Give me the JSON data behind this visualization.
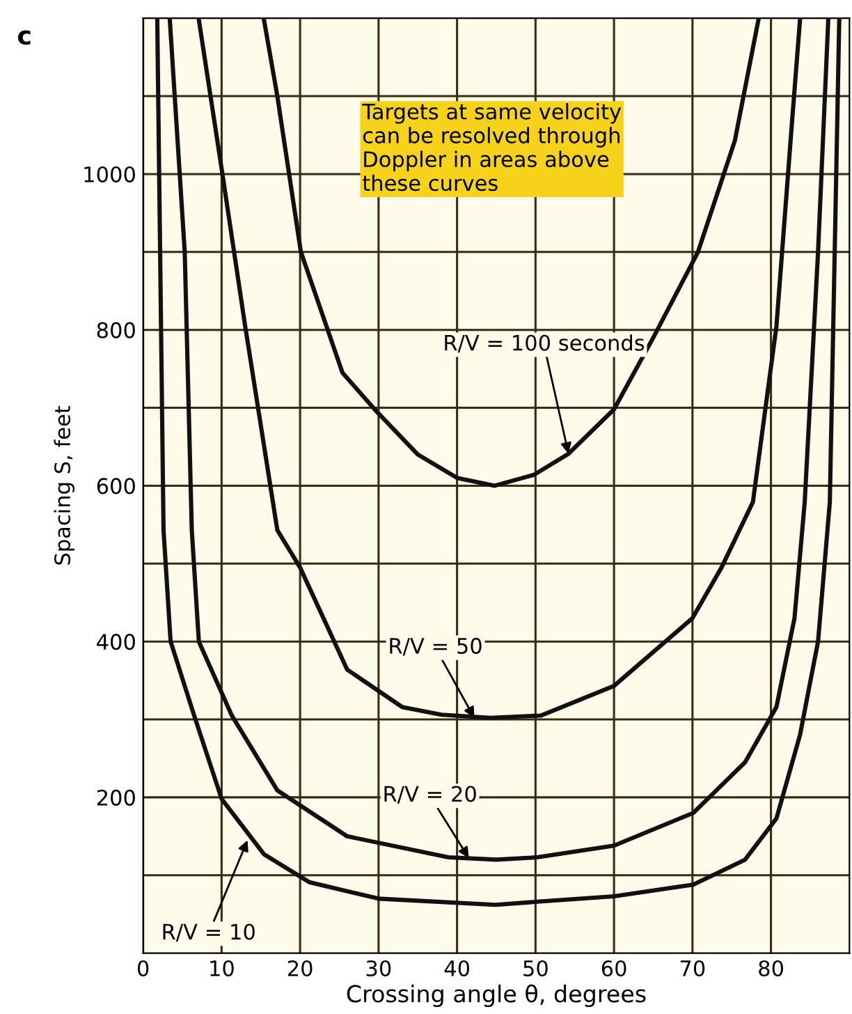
{
  "chart_data": {
    "type": "line",
    "xlabel": "Crossing angle θ, degrees",
    "ylabel": "Spacing S, feet",
    "xlim": [
      0,
      90
    ],
    "xticks": [
      0,
      10,
      20,
      30,
      40,
      50,
      60,
      70,
      80
    ],
    "ylim": [
      0,
      1200
    ],
    "yticks": [
      {
        "value": 100,
        "label": null
      },
      200,
      {
        "value": 300,
        "label": null
      },
      400,
      {
        "value": 500,
        "label": null
      },
      600,
      {
        "value": 700,
        "label": null
      },
      800,
      {
        "value": 900,
        "label": null
      },
      1000,
      {
        "value": 1100,
        "label": null
      }
    ],
    "grid": true,
    "marker": "none",
    "line_style": "solid",
    "series": [
      {
        "color": "#111111",
        "x": [
          15.4,
          17.1,
          20.1,
          25.4,
          29.5,
          35,
          40,
          44.8,
          49.8,
          54.2,
          60,
          65,
          70.7,
          75.4,
          78.4
        ],
        "values": [
          1198,
          1100,
          900,
          745,
          698,
          640,
          610,
          600,
          614,
          641,
          698,
          790,
          900,
          1043,
          1198
        ]
      },
      {
        "color": "#111111",
        "x": [
          7.1,
          10,
          13,
          17.1,
          20,
          26,
          33,
          38,
          44.2,
          50.7,
          60,
          70,
          73.7,
          77.7,
          80.7,
          82.5,
          83.7
        ],
        "values": [
          1198,
          1007,
          805,
          543,
          495,
          364,
          316,
          306,
          302,
          305,
          343,
          430,
          495,
          579,
          805,
          1043,
          1198
        ]
      },
      {
        "color": "#111111",
        "x": [
          3.4,
          5.3,
          6.2,
          7.1,
          11.3,
          17.1,
          26,
          38.9,
          45,
          50.2,
          60,
          70.1,
          76.7,
          80.7,
          83,
          84.3,
          86,
          87.3
        ],
        "values": [
          1198,
          900,
          543,
          400,
          305,
          209,
          150,
          123,
          120,
          123,
          138,
          180,
          245,
          316,
          430,
          579,
          900,
          1198
        ]
      },
      {
        "color": "#111111",
        "x": [
          1.8,
          2.6,
          3.5,
          6.5,
          10,
          15.4,
          21.2,
          30,
          44.9,
          50.2,
          60,
          70.1,
          76.7,
          80.7,
          83.7,
          86,
          87.5,
          88.7
        ],
        "values": [
          1198,
          543,
          400,
          305,
          198,
          127,
          91,
          70,
          62,
          66,
          73,
          88,
          120,
          173,
          280,
          400,
          579,
          1198
        ]
      }
    ],
    "annotations": [
      "c",
      "Targets at same velocity\ncan be resolved through\nDoppler in areas above\nthese curves",
      {
        "text": "R/V = 100 seconds",
        "x": 54.2,
        "y": 641
      },
      {
        "text": "R/V = 50",
        "x": 42.2,
        "y": 302
      },
      {
        "text": "R/V = 20",
        "x": 41.5,
        "y": 122
      },
      {
        "text": "R/V = 10",
        "x": 13.3,
        "y": 145
      }
    ]
  }
}
